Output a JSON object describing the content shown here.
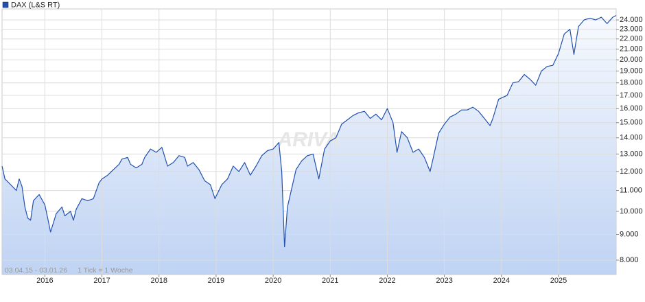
{
  "chart_data": {
    "type": "line",
    "legend": "DAX (L&S RT)",
    "watermark": "ARIVA",
    "range_note": "03.04.15 - 03.01.26",
    "tick_note": "1 Tick = 1 Woche",
    "log_scale": true,
    "grid": true,
    "color": "#1f4fb0",
    "xlim": [
      2015.25,
      2026.01
    ],
    "xticks": [
      2016,
      2017,
      2018,
      2019,
      2020,
      2021,
      2022,
      2023,
      2024,
      2025
    ],
    "ylim": [
      7490,
      25240
    ],
    "yticks": [
      {
        "value": 8000,
        "label": "8.000"
      },
      {
        "value": 9000,
        "label": "9.000"
      },
      {
        "value": 10000,
        "label": "10.000"
      },
      {
        "value": 11000,
        "label": "11.000"
      },
      {
        "value": 12000,
        "label": "12.000"
      },
      {
        "value": 13000,
        "label": "13.000"
      },
      {
        "value": 14000,
        "label": "14.000"
      },
      {
        "value": 15000,
        "label": "15.000"
      },
      {
        "value": 16000,
        "label": "16.000"
      },
      {
        "value": 17000,
        "label": "17.000"
      },
      {
        "value": 18000,
        "label": "18.000"
      },
      {
        "value": 19000,
        "label": "19.000"
      },
      {
        "value": 20000,
        "label": "20.000"
      },
      {
        "value": 21000,
        "label": "21.000"
      },
      {
        "value": 22000,
        "label": "22.000"
      },
      {
        "value": 23000,
        "label": "23.000"
      },
      {
        "value": 24000,
        "label": "24.000"
      }
    ],
    "x": [
      2015.25,
      2015.3,
      2015.4,
      2015.5,
      2015.55,
      2015.6,
      2015.65,
      2015.7,
      2015.75,
      2015.8,
      2015.9,
      2016.0,
      2016.05,
      2016.1,
      2016.2,
      2016.3,
      2016.35,
      2016.45,
      2016.5,
      2016.55,
      2016.65,
      2016.75,
      2016.85,
      2016.95,
      2017.0,
      2017.1,
      2017.2,
      2017.3,
      2017.35,
      2017.45,
      2017.5,
      2017.6,
      2017.7,
      2017.75,
      2017.85,
      2017.95,
      2018.05,
      2018.15,
      2018.25,
      2018.35,
      2018.45,
      2018.5,
      2018.6,
      2018.7,
      2018.8,
      2018.9,
      2018.98,
      2019.1,
      2019.2,
      2019.3,
      2019.4,
      2019.5,
      2019.6,
      2019.7,
      2019.8,
      2019.9,
      2020.0,
      2020.1,
      2020.15,
      2020.2,
      2020.25,
      2020.3,
      2020.4,
      2020.5,
      2020.6,
      2020.7,
      2020.8,
      2020.9,
      2021.0,
      2021.1,
      2021.2,
      2021.3,
      2021.4,
      2021.5,
      2021.6,
      2021.7,
      2021.8,
      2021.9,
      2022.0,
      2022.1,
      2022.17,
      2022.25,
      2022.35,
      2022.45,
      2022.55,
      2022.65,
      2022.75,
      2022.8,
      2022.9,
      2023.0,
      2023.1,
      2023.2,
      2023.3,
      2023.4,
      2023.5,
      2023.6,
      2023.7,
      2023.8,
      2023.85,
      2023.95,
      2024.1,
      2024.2,
      2024.3,
      2024.4,
      2024.5,
      2024.6,
      2024.7,
      2024.8,
      2024.9,
      2025.0,
      2025.1,
      2025.2,
      2025.27,
      2025.35,
      2025.45,
      2025.55,
      2025.65,
      2025.75,
      2025.85,
      2025.95,
      2026.01
    ],
    "values": [
      12300,
      11600,
      11300,
      11000,
      11600,
      11200,
      10200,
      9700,
      9600,
      10500,
      10800,
      10300,
      9700,
      9100,
      9900,
      10200,
      9800,
      10000,
      9600,
      10100,
      10600,
      10500,
      10600,
      11400,
      11600,
      11800,
      12100,
      12400,
      12700,
      12800,
      12400,
      12200,
      12400,
      12800,
      13300,
      13100,
      13400,
      12300,
      12500,
      12900,
      12800,
      12300,
      12500,
      12100,
      11500,
      11300,
      10600,
      11300,
      11600,
      12300,
      12000,
      12500,
      11800,
      12300,
      12900,
      13200,
      13300,
      13700,
      12000,
      8500,
      10200,
      10800,
      12100,
      12600,
      12900,
      13000,
      11600,
      13300,
      13800,
      14000,
      14900,
      15200,
      15500,
      15700,
      15800,
      15300,
      15600,
      15200,
      16000,
      15000,
      13100,
      14400,
      14000,
      13100,
      13300,
      12800,
      12000,
      12700,
      14300,
      14900,
      15400,
      15600,
      15900,
      15900,
      16100,
      15800,
      15300,
      14800,
      15300,
      16700,
      17000,
      18000,
      18100,
      18700,
      18300,
      17800,
      19000,
      19400,
      19500,
      20600,
      22500,
      23000,
      20500,
      23300,
      24000,
      24200,
      24000,
      24300,
      23600,
      24300,
      24500
    ]
  }
}
